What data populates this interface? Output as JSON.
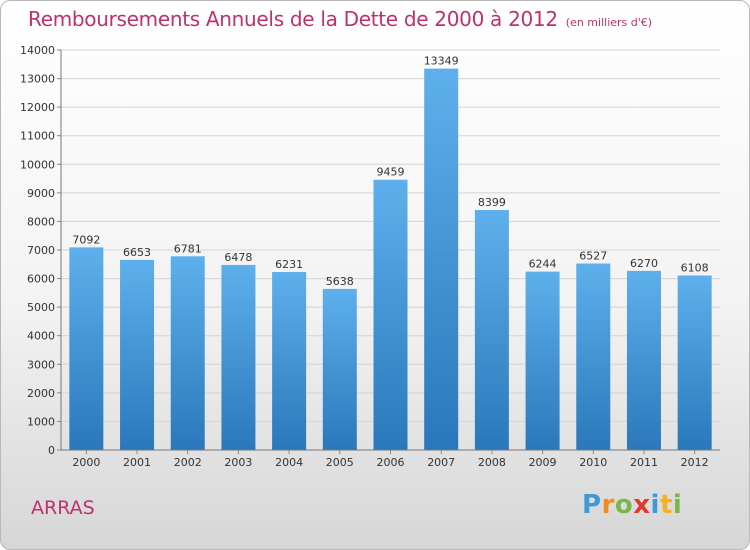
{
  "header": {
    "title": "Remboursements Annuels de la Dette de 2000 à 2012",
    "unit": "(en milliers d'€)"
  },
  "footer": {
    "city": "ARRAS",
    "logo": "Proxiti"
  },
  "colors": {
    "title": "#c0306b",
    "bar_top": "#5eb0ec",
    "bar_bottom": "#2a78bb"
  },
  "chart_data": {
    "type": "bar",
    "title": "Remboursements Annuels de la Dette de 2000 à 2012",
    "xlabel": "",
    "ylabel": "",
    "categories": [
      "2000",
      "2001",
      "2002",
      "2003",
      "2004",
      "2005",
      "2006",
      "2007",
      "2008",
      "2009",
      "2010",
      "2011",
      "2012"
    ],
    "values": [
      7092,
      6653,
      6781,
      6478,
      6231,
      5638,
      9459,
      13349,
      8399,
      6244,
      6527,
      6270,
      6108
    ],
    "ylim": [
      0,
      14000
    ],
    "yticks": [
      0,
      1000,
      2000,
      3000,
      4000,
      5000,
      6000,
      7000,
      8000,
      9000,
      10000,
      11000,
      12000,
      13000,
      14000
    ],
    "grid": true,
    "legend": "none"
  }
}
